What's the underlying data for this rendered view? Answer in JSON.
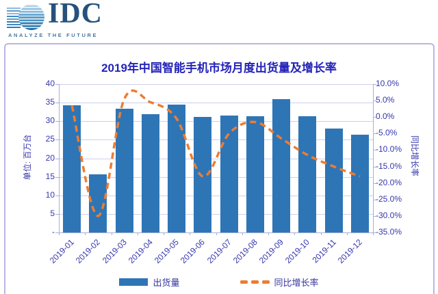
{
  "logo": {
    "brand": "IDC",
    "tagline": "ANALYZE THE FUTURE"
  },
  "chart_data": {
    "type": "bar",
    "title": "2019年中国智能手机市场月度出货量及增长率",
    "categories": [
      "2019-01",
      "2019-02",
      "2019-03",
      "2019-04",
      "2019-05",
      "2019-06",
      "2019-07",
      "2019-08",
      "2019-09",
      "2019-10",
      "2019-11",
      "2019-12"
    ],
    "series": [
      {
        "name": "出货量",
        "type": "bar",
        "axis": "left",
        "color": "#2E75B6",
        "values": [
          34.3,
          15.7,
          33.3,
          31.8,
          34.5,
          31.1,
          31.5,
          31.3,
          36.0,
          31.3,
          28.0,
          26.3
        ]
      },
      {
        "name": "同比增长率",
        "type": "line",
        "axis": "right",
        "color": "#ED7D31",
        "dashed": true,
        "values": [
          3.5,
          -30.0,
          5.5,
          4.5,
          -0.5,
          -18.0,
          -5.0,
          -1.5,
          -6.5,
          -11.5,
          -15.0,
          -18.0
        ]
      }
    ],
    "left_axis": {
      "title": "单位: 百万台",
      "min": 0,
      "max": 40,
      "step": 5,
      "tick_labels": [
        "40",
        "35",
        "30",
        "25",
        "20",
        "15",
        "10",
        "5",
        "-"
      ]
    },
    "right_axis": {
      "title": "同比增长率",
      "min": -35,
      "max": 10,
      "step": 5,
      "tick_labels": [
        "10.0%",
        "5.0%",
        "0.0%",
        "-5.0%",
        "-10.0%",
        "-15.0%",
        "-20.0%",
        "-25.0%",
        "-30.0%",
        "-35.0%"
      ]
    },
    "grid": true,
    "legend_position": "bottom"
  },
  "colors": {
    "bar": "#2E75B6",
    "line": "#ED7D31",
    "text": "#3535ad",
    "title": "#2323b8",
    "gridline": "#ccd0ea",
    "frame": "#b9b6e2"
  }
}
